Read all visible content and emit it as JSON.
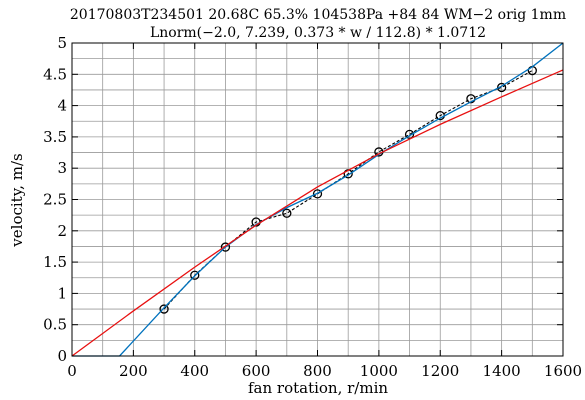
{
  "chart_data": {
    "type": "scatter",
    "title": "20170803T234501 20.68C 65.3% 104538Pa +84 84 WM−2 orig 1mm",
    "subtitle": "Lnorm(−2.0, 7.239, 0.373 * w / 112.8) * 1.0712",
    "xlabel": "fan rotation, r/min",
    "ylabel": "velocity, m/s",
    "xlim": [
      0,
      1600
    ],
    "ylim": [
      0,
      5
    ],
    "x_ticks": [
      0,
      200,
      400,
      600,
      800,
      1000,
      1200,
      1400,
      1600
    ],
    "y_ticks": [
      0,
      0.5,
      1,
      1.5,
      2,
      2.5,
      3,
      3.5,
      4,
      4.5,
      5
    ],
    "x_tick_labels": [
      "0",
      "200",
      "400",
      "600",
      "800",
      "1000",
      "1200",
      "1400",
      "1600"
    ],
    "y_tick_labels": [
      "0",
      "0.5",
      "1",
      "1.5",
      "2",
      "2.5",
      "3",
      "3.5",
      "4",
      "4.5",
      "5"
    ],
    "grid": true,
    "x_minor_step": 100,
    "y_minor_step": 0.25,
    "series": [
      {
        "kind": "markers-dashed",
        "color": "#000000",
        "x": [
          300,
          400,
          500,
          600,
          700,
          800,
          900,
          1000,
          1100,
          1200,
          1300,
          1400,
          1500
        ],
        "y": [
          0.75,
          1.29,
          1.74,
          2.14,
          2.28,
          2.59,
          2.91,
          3.26,
          3.54,
          3.84,
          4.11,
          4.29,
          4.56
        ]
      },
      {
        "kind": "line",
        "color": "#0072bd",
        "x": [
          0,
          155,
          300,
          400,
          500,
          600,
          700,
          800,
          900,
          1000,
          1100,
          1200,
          1300,
          1400,
          1500,
          1600
        ],
        "y": [
          0,
          0,
          0.77,
          1.28,
          1.74,
          2.1,
          2.37,
          2.6,
          2.89,
          3.22,
          3.52,
          3.8,
          4.06,
          4.31,
          4.62,
          5.0
        ]
      },
      {
        "kind": "line",
        "color": "#e81010",
        "x": [
          0,
          200,
          400,
          600,
          800,
          1000,
          1200,
          1400,
          1600
        ],
        "y": [
          0,
          0.72,
          1.42,
          2.09,
          2.7,
          3.23,
          3.7,
          4.14,
          4.57
        ]
      }
    ]
  }
}
